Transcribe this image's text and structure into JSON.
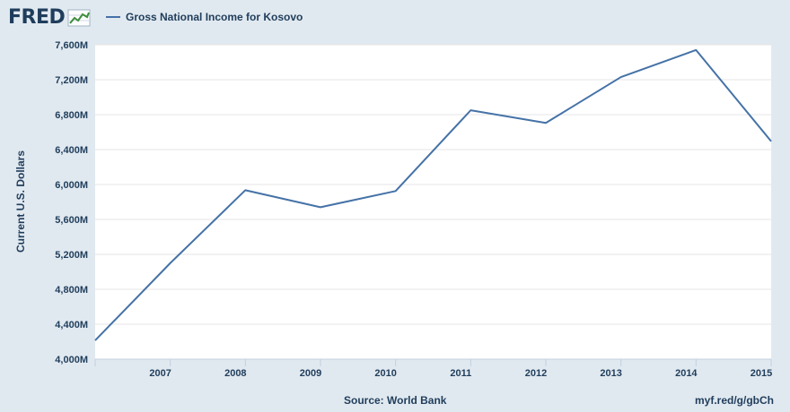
{
  "brand": {
    "name": "FRED",
    "icon": "fred-line-chart-icon"
  },
  "legend": {
    "label": "Gross National Income for Kosovo"
  },
  "footer": {
    "source": "Source: World Bank",
    "link": "myf.red/g/gbCh"
  },
  "colors": {
    "series": "#4572a7",
    "background": "#e1e9f0",
    "plot": "#ffffff",
    "text": "#1f3d5b"
  },
  "chart_data": {
    "type": "line",
    "title": "",
    "xlabel": "",
    "ylabel": "Current U.S. Dollars",
    "x": [
      2006,
      2007,
      2008,
      2009,
      2010,
      2011,
      2012,
      2013,
      2014,
      2015
    ],
    "x_tick_labels": [
      "2007",
      "2008",
      "2009",
      "2010",
      "2011",
      "2012",
      "2013",
      "2014",
      "2015"
    ],
    "y_tick_labels": [
      "4,000M",
      "4,400M",
      "4,800M",
      "5,200M",
      "5,600M",
      "6,000M",
      "6,400M",
      "6,800M",
      "7,200M",
      "7,600M"
    ],
    "y_ticks": [
      4000,
      4400,
      4800,
      5200,
      5600,
      6000,
      6400,
      6800,
      7200,
      7600
    ],
    "ylim": [
      4000,
      7600
    ],
    "y_unit": "Millions of current U.S. dollars",
    "grid": "horizontal",
    "series": [
      {
        "name": "Gross National Income for Kosovo",
        "values": [
          4215,
          5100,
          5935,
          5740,
          5925,
          6850,
          6705,
          7230,
          7540,
          6495
        ]
      }
    ]
  }
}
